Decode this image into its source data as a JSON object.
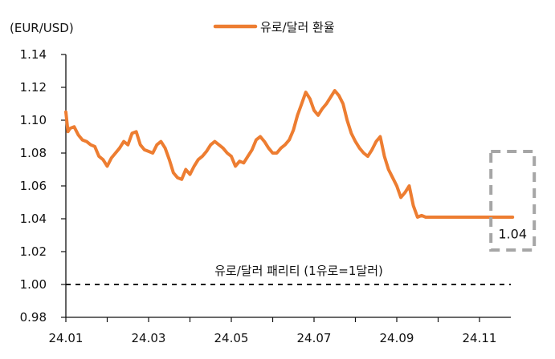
{
  "chart_data": {
    "type": "line",
    "unit_label": "(EUR/USD)",
    "legend": {
      "position": "top-center",
      "label": "유로/달러 환율"
    },
    "ylim": [
      0.98,
      1.14
    ],
    "y_ticks": [
      "0.98",
      "1.00",
      "1.02",
      "1.04",
      "1.06",
      "1.08",
      "1.10",
      "1.12",
      "1.14"
    ],
    "x_ticks": [
      "24.01",
      "24.03",
      "24.05",
      "24.07",
      "24.09",
      "24.11"
    ],
    "x_tick_positions": [
      0,
      2,
      4,
      6,
      8,
      10
    ],
    "grid": false,
    "series": [
      {
        "name": "유로/달러 환율",
        "color": "#ED7D31",
        "x": [
          0.0,
          0.05,
          0.1,
          0.2,
          0.3,
          0.4,
          0.5,
          0.6,
          0.7,
          0.8,
          0.9,
          1.0,
          1.1,
          1.2,
          1.3,
          1.4,
          1.5,
          1.6,
          1.7,
          1.8,
          1.9,
          2.0,
          2.1,
          2.2,
          2.3,
          2.4,
          2.5,
          2.6,
          2.7,
          2.8,
          2.9,
          3.0,
          3.1,
          3.2,
          3.3,
          3.4,
          3.5,
          3.6,
          3.7,
          3.8,
          3.9,
          4.0,
          4.1,
          4.2,
          4.3,
          4.4,
          4.5,
          4.6,
          4.7,
          4.8,
          4.9,
          5.0,
          5.1,
          5.2,
          5.3,
          5.4,
          5.5,
          5.6,
          5.7,
          5.8,
          5.9,
          6.0,
          6.1,
          6.2,
          6.3,
          6.4,
          6.5,
          6.6,
          6.7,
          6.8,
          6.9,
          7.0,
          7.1,
          7.2,
          7.3,
          7.4,
          7.5,
          7.6,
          7.7,
          7.8,
          7.9,
          8.0,
          8.1,
          8.2,
          8.3,
          8.4,
          8.5,
          8.6,
          8.7,
          8.8,
          8.9,
          9.0,
          9.1,
          9.2,
          9.3,
          9.4,
          9.5,
          9.6,
          9.7,
          9.8,
          9.9,
          10.0,
          10.1,
          10.2,
          10.3,
          10.4,
          10.5,
          10.6,
          10.7,
          10.8
        ],
        "values": [
          1.105,
          1.093,
          1.095,
          1.096,
          1.091,
          1.088,
          1.087,
          1.085,
          1.084,
          1.078,
          1.076,
          1.072,
          1.077,
          1.08,
          1.083,
          1.087,
          1.085,
          1.092,
          1.093,
          1.085,
          1.082,
          1.081,
          1.08,
          1.085,
          1.087,
          1.083,
          1.076,
          1.068,
          1.065,
          1.064,
          1.07,
          1.067,
          1.072,
          1.076,
          1.078,
          1.081,
          1.085,
          1.087,
          1.085,
          1.083,
          1.08,
          1.078,
          1.072,
          1.075,
          1.074,
          1.078,
          1.082,
          1.088,
          1.09,
          1.087,
          1.083,
          1.08,
          1.08,
          1.083,
          1.085,
          1.088,
          1.094,
          1.103,
          1.11,
          1.117,
          1.113,
          1.106,
          1.103,
          1.107,
          1.11,
          1.114,
          1.118,
          1.115,
          1.11,
          1.1,
          1.092,
          1.087,
          1.083,
          1.08,
          1.078,
          1.082,
          1.087,
          1.09,
          1.078,
          1.07,
          1.065,
          1.06,
          1.053,
          1.056,
          1.06,
          1.048,
          1.041,
          1.042,
          1.041,
          1.041,
          1.041,
          1.041,
          1.041,
          1.041,
          1.041,
          1.041,
          1.041,
          1.041,
          1.041,
          1.041,
          1.041,
          1.041,
          1.041,
          1.041,
          1.041,
          1.041,
          1.041,
          1.041,
          1.041,
          1.041
        ]
      }
    ],
    "reference_line": {
      "value": 1.0,
      "label": "유로/달러 패리티 (1유로=1달러)"
    },
    "highlight": {
      "label": "1.04"
    }
  }
}
